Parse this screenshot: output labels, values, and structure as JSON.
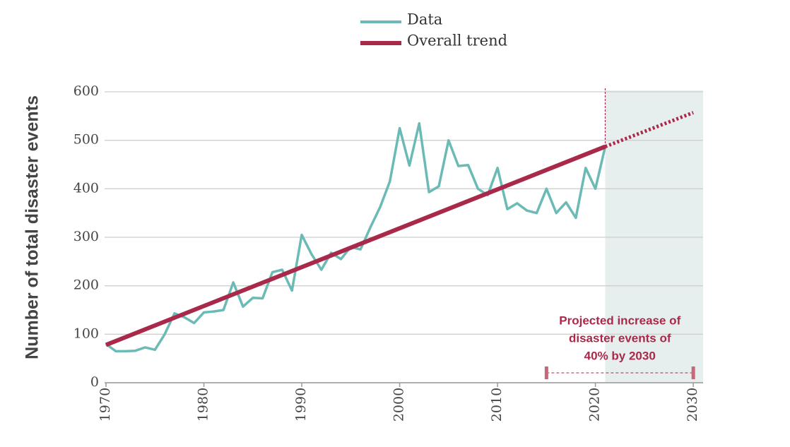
{
  "chart_data": {
    "type": "line",
    "ylabel": "Number of total disaster events",
    "x": [
      1970,
      1971,
      1972,
      1973,
      1974,
      1975,
      1976,
      1977,
      1978,
      1979,
      1980,
      1981,
      1982,
      1983,
      1984,
      1985,
      1986,
      1987,
      1988,
      1989,
      1990,
      1991,
      1992,
      1993,
      1994,
      1995,
      1996,
      1997,
      1998,
      1999,
      2000,
      2001,
      2002,
      2003,
      2004,
      2005,
      2006,
      2007,
      2008,
      2009,
      2010,
      2011,
      2012,
      2013,
      2014,
      2015,
      2016,
      2017,
      2018,
      2019,
      2020,
      2021
    ],
    "series": [
      {
        "name": "Data",
        "color": "#6bbab5",
        "values": [
          80,
          65,
          65,
          66,
          73,
          68,
          100,
          143,
          135,
          123,
          145,
          147,
          150,
          207,
          157,
          175,
          174,
          228,
          233,
          190,
          305,
          265,
          233,
          268,
          255,
          280,
          275,
          320,
          362,
          415,
          525,
          448,
          535,
          393,
          405,
          500,
          447,
          449,
          400,
          387,
          443,
          358,
          370,
          355,
          350,
          400,
          350,
          372,
          340,
          443,
          400,
          487
        ]
      },
      {
        "name": "Overall trend",
        "color": "#a8294a",
        "x": [
          1970,
          2021
        ],
        "values": [
          78,
          487
        ]
      }
    ],
    "projection": {
      "x": [
        2021,
        2030
      ],
      "values": [
        487,
        557
      ],
      "color": "#a8294a"
    },
    "shade_from": 2021,
    "annotation": {
      "lines": [
        "Projected increase of",
        "disaster events of",
        "40% by 2030"
      ],
      "range": [
        2015,
        2030
      ],
      "color": "#a8294a"
    },
    "xlim": [
      1970,
      2031
    ],
    "xticks": [
      1970,
      1980,
      1990,
      2000,
      2010,
      2020,
      2030
    ],
    "ylim": [
      0,
      600
    ],
    "yticks": [
      0,
      100,
      200,
      300,
      400,
      500,
      600
    ],
    "grid": true
  }
}
